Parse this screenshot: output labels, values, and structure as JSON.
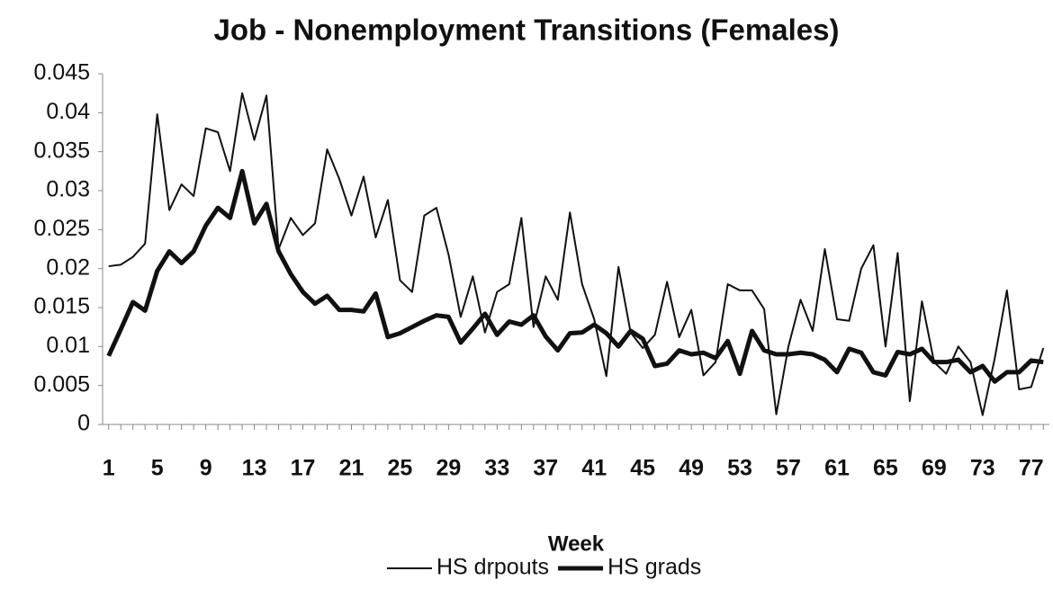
{
  "chart_data": {
    "type": "line",
    "title": "Job - Nonemployment Transitions (Females)",
    "xlabel": "Week",
    "categories": [
      1,
      null,
      null,
      null,
      5,
      null,
      null,
      null,
      9,
      null,
      null,
      null,
      13,
      null,
      null,
      null,
      17,
      null,
      null,
      null,
      21,
      null,
      null,
      null,
      25,
      null,
      null,
      null,
      29,
      null,
      null,
      null,
      33,
      null,
      null,
      null,
      37,
      null,
      null,
      null,
      41,
      null,
      null,
      null,
      45,
      null,
      null,
      null,
      49,
      null,
      null,
      null,
      53,
      null,
      null,
      null,
      57,
      null,
      null,
      null,
      61,
      null,
      null,
      null,
      65,
      null,
      null,
      null,
      69,
      null,
      null,
      null,
      73,
      null,
      null,
      null,
      77,
      null
    ],
    "series": [
      {
        "name": "HS drpouts",
        "color": "#111111",
        "width": 2,
        "values": [
          0.0203,
          0.0205,
          0.0215,
          0.0232,
          0.0398,
          0.0275,
          0.0308,
          0.0293,
          0.038,
          0.0375,
          0.0325,
          0.0425,
          0.0365,
          0.0422,
          0.0225,
          0.0265,
          0.0243,
          0.0258,
          0.0353,
          0.0315,
          0.0268,
          0.0318,
          0.024,
          0.0288,
          0.0185,
          0.017,
          0.0268,
          0.0278,
          0.0218,
          0.0138,
          0.019,
          0.0118,
          0.017,
          0.018,
          0.0265,
          0.0125,
          0.019,
          0.016,
          0.0272,
          0.018,
          0.0135,
          0.0062,
          0.0202,
          0.0118,
          0.0098,
          0.0115,
          0.0183,
          0.0112,
          0.0147,
          0.0063,
          0.008,
          0.018,
          0.0172,
          0.0172,
          0.0148,
          0.0013,
          0.01,
          0.016,
          0.012,
          0.0225,
          0.0135,
          0.0133,
          0.02,
          0.023,
          0.01,
          0.022,
          0.003,
          0.0158,
          0.008,
          0.0065,
          0.01,
          0.008,
          0.0012,
          0.0085,
          0.0172,
          0.0045,
          0.0048,
          0.0098
        ]
      },
      {
        "name": "HS grads",
        "color": "#111111",
        "width": 5,
        "values": [
          0.0088,
          0.0122,
          0.0157,
          0.0146,
          0.0197,
          0.0222,
          0.0207,
          0.0222,
          0.0255,
          0.0278,
          0.0265,
          0.0325,
          0.0258,
          0.0283,
          0.0222,
          0.0193,
          0.017,
          0.0155,
          0.0165,
          0.0147,
          0.0147,
          0.0145,
          0.0168,
          0.0112,
          0.0117,
          0.0125,
          0.0133,
          0.014,
          0.0138,
          0.0105,
          0.0123,
          0.0142,
          0.0115,
          0.0132,
          0.0128,
          0.014,
          0.0113,
          0.0095,
          0.0117,
          0.0118,
          0.0128,
          0.0117,
          0.01,
          0.012,
          0.011,
          0.0075,
          0.0078,
          0.0095,
          0.009,
          0.0092,
          0.0085,
          0.0107,
          0.0065,
          0.012,
          0.0095,
          0.009,
          0.009,
          0.0092,
          0.009,
          0.0083,
          0.0067,
          0.0097,
          0.0092,
          0.0067,
          0.0063,
          0.0093,
          0.009,
          0.0097,
          0.008,
          0.008,
          0.0083,
          0.0067,
          0.0075,
          0.0055,
          0.0067,
          0.0067,
          0.0082,
          0.008
        ]
      }
    ],
    "ylim": [
      0,
      0.045
    ],
    "yticks": [
      0,
      0.005,
      0.01,
      0.015,
      0.02,
      0.025,
      0.03,
      0.035,
      0.04,
      0.045
    ],
    "grid": false,
    "legend": "bottom"
  }
}
